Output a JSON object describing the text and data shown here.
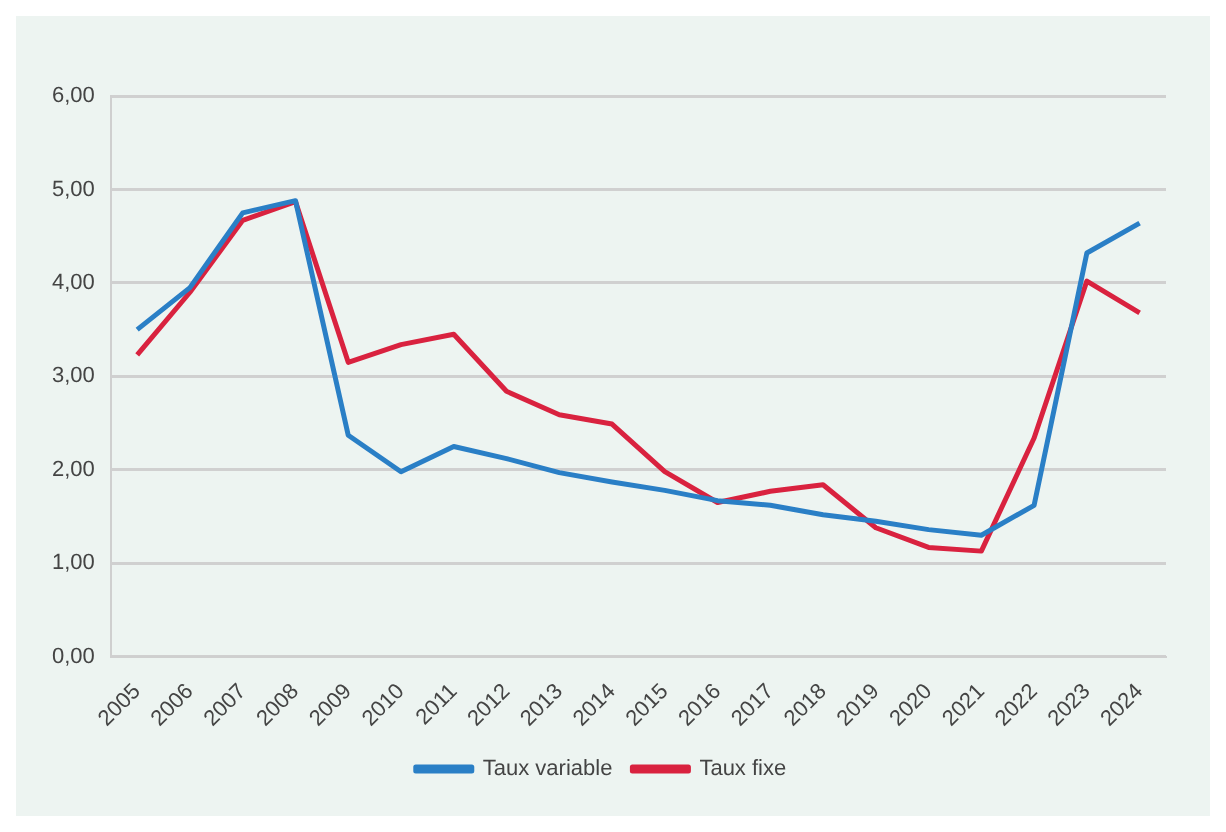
{
  "chart_data": {
    "type": "line",
    "categories": [
      "2005",
      "2006",
      "2007",
      "2008",
      "2009",
      "2010",
      "2011",
      "2012",
      "2013",
      "2014",
      "2015",
      "2016",
      "2017",
      "2018",
      "2019",
      "2020",
      "2021",
      "2022",
      "2023",
      "2024"
    ],
    "series": [
      {
        "name": "Taux variable",
        "color": "#2a7fc6",
        "values": [
          3.5,
          3.95,
          4.75,
          4.88,
          2.37,
          1.98,
          2.25,
          2.12,
          1.97,
          1.87,
          1.78,
          1.67,
          1.62,
          1.52,
          1.45,
          1.36,
          1.3,
          1.62,
          4.32,
          4.64
        ]
      },
      {
        "name": "Taux fixe",
        "color": "#d9223f",
        "values": [
          3.23,
          3.9,
          4.67,
          4.87,
          3.15,
          3.34,
          3.45,
          2.84,
          2.59,
          2.49,
          1.98,
          1.65,
          1.77,
          1.84,
          1.38,
          1.17,
          1.13,
          2.34,
          4.02,
          3.68
        ]
      }
    ],
    "ylim": [
      0,
      6
    ],
    "yticks": [
      {
        "value": 0,
        "label": "0,00"
      },
      {
        "value": 1,
        "label": "1,00"
      },
      {
        "value": 2,
        "label": "2,00"
      },
      {
        "value": 3,
        "label": "3,00"
      },
      {
        "value": 4,
        "label": "4,00"
      },
      {
        "value": 5,
        "label": "5,00"
      },
      {
        "value": 6,
        "label": "6,00"
      }
    ],
    "grid": "y",
    "legend": "bottom",
    "marker": "none",
    "line_style": "solid"
  }
}
